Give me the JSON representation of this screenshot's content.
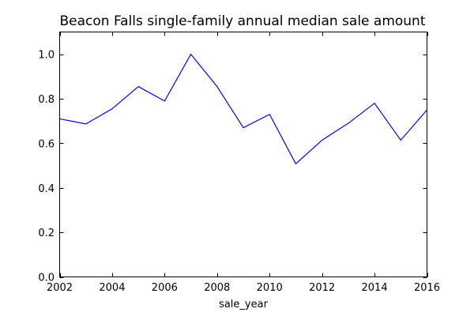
{
  "chart_data": {
    "type": "line",
    "title": "Beacon Falls single-family annual median sale amount",
    "xlabel": "sale_year",
    "ylabel": "",
    "xlim": [
      2002,
      2016
    ],
    "ylim": [
      0.0,
      1.1
    ],
    "x_ticks": [
      2002,
      2004,
      2006,
      2008,
      2010,
      2012,
      2014,
      2016
    ],
    "y_ticks": [
      0.0,
      0.2,
      0.4,
      0.6,
      0.8,
      1.0
    ],
    "x_tick_labels": [
      "2002",
      "2004",
      "2006",
      "2008",
      "2010",
      "2012",
      "2014",
      "2016"
    ],
    "y_tick_labels": [
      "0.0",
      "0.2",
      "0.4",
      "0.6",
      "0.8",
      "1.0"
    ],
    "grid": false,
    "legend": "none",
    "series": [
      {
        "color": "#0000ff",
        "x": [
          2002,
          2003,
          2004,
          2005,
          2006,
          2007,
          2008,
          2009,
          2010,
          2011,
          2012,
          2013,
          2014,
          2015,
          2016
        ],
        "y": [
          0.71,
          0.687,
          0.755,
          0.855,
          0.79,
          1.0,
          0.855,
          0.67,
          0.73,
          0.508,
          0.614,
          0.69,
          0.78,
          0.614,
          0.75
        ]
      }
    ]
  }
}
